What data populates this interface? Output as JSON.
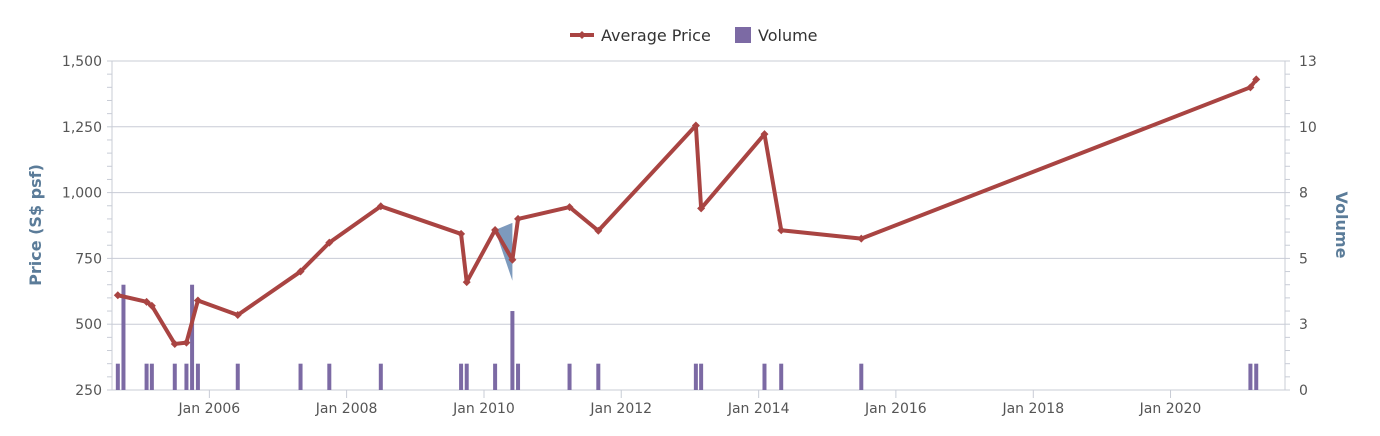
{
  "colors": {
    "price_line": "#a94442",
    "volume_bar": "#7c6aa4",
    "range_band": "#6f8fb6",
    "grid": "#c8ccd6",
    "axis_title": "#5b7c99"
  },
  "chart_data": {
    "type": "line",
    "legend": {
      "position": "top-center",
      "items": [
        {
          "name": "Average Price",
          "symbol": "line-diamond",
          "color": "#a94442"
        },
        {
          "name": "Volume",
          "symbol": "square",
          "color": "#7c6aa4"
        }
      ]
    },
    "y_left": {
      "title": "Price (S$ psf)",
      "min": 250,
      "max": 1500,
      "ticks": [
        250,
        500,
        750,
        1000,
        1250,
        1500
      ],
      "tick_labels": [
        "250",
        "500",
        "750",
        "1,000",
        "1,250",
        "1,500"
      ],
      "grid": true
    },
    "y_right": {
      "title": "Volume",
      "min": 0,
      "max": 12.5,
      "ticks": [
        0,
        2.5,
        5,
        7.5,
        10,
        12.5
      ],
      "tick_labels": [
        "0",
        "3",
        "5",
        "8",
        "10",
        "13"
      ]
    },
    "x_axis": {
      "type": "date",
      "min": "2004-08-01",
      "max": "2021-09-01",
      "ticks": [
        "2006-01-01",
        "2008-01-01",
        "2010-01-01",
        "2012-01-01",
        "2014-01-01",
        "2016-01-01",
        "2018-01-01",
        "2020-01-01"
      ],
      "tick_labels": [
        "Jan 2006",
        "Jan 2008",
        "Jan 2010",
        "Jan 2012",
        "Jan 2014",
        "Jan 2016",
        "Jan 2018",
        "Jan 2020"
      ]
    },
    "series": [
      {
        "name": "Average Price",
        "type": "line",
        "points": [
          {
            "date": "2004-09-01",
            "value": 610
          },
          {
            "date": "2005-02-01",
            "value": 585
          },
          {
            "date": "2005-03-01",
            "value": 570
          },
          {
            "date": "2005-07-01",
            "value": 425
          },
          {
            "date": "2005-09-01",
            "value": 430
          },
          {
            "date": "2005-11-01",
            "value": 590
          },
          {
            "date": "2006-06-01",
            "value": 535
          },
          {
            "date": "2007-05-01",
            "value": 700
          },
          {
            "date": "2007-10-01",
            "value": 810
          },
          {
            "date": "2008-07-01",
            "value": 948
          },
          {
            "date": "2009-09-01",
            "value": 843
          },
          {
            "date": "2009-10-01",
            "value": 660
          },
          {
            "date": "2010-03-01",
            "value": 858
          },
          {
            "date": "2010-06-01",
            "value": 745
          },
          {
            "date": "2010-07-01",
            "value": 900
          },
          {
            "date": "2011-04-01",
            "value": 945
          },
          {
            "date": "2011-09-01",
            "value": 855
          },
          {
            "date": "2013-02-01",
            "value": 1255
          },
          {
            "date": "2013-03-01",
            "value": 940
          },
          {
            "date": "2014-02-01",
            "value": 1222
          },
          {
            "date": "2014-05-01",
            "value": 857
          },
          {
            "date": "2015-07-01",
            "value": 825
          },
          {
            "date": "2021-03-01",
            "value": 1400
          },
          {
            "date": "2021-04-01",
            "value": 1430
          }
        ]
      },
      {
        "name": "Volume",
        "type": "bar",
        "points": [
          {
            "date": "2004-09-01",
            "value": 1
          },
          {
            "date": "2004-10-01",
            "value": 4
          },
          {
            "date": "2005-02-01",
            "value": 1
          },
          {
            "date": "2005-03-01",
            "value": 1
          },
          {
            "date": "2005-07-01",
            "value": 1
          },
          {
            "date": "2005-09-01",
            "value": 1
          },
          {
            "date": "2005-10-01",
            "value": 4
          },
          {
            "date": "2005-11-01",
            "value": 1
          },
          {
            "date": "2006-06-01",
            "value": 1
          },
          {
            "date": "2007-05-01",
            "value": 1
          },
          {
            "date": "2007-10-01",
            "value": 1
          },
          {
            "date": "2008-07-01",
            "value": 1
          },
          {
            "date": "2009-09-01",
            "value": 1
          },
          {
            "date": "2009-10-01",
            "value": 1
          },
          {
            "date": "2010-03-01",
            "value": 1
          },
          {
            "date": "2010-06-01",
            "value": 3
          },
          {
            "date": "2010-07-01",
            "value": 1
          },
          {
            "date": "2011-04-01",
            "value": 1
          },
          {
            "date": "2011-09-01",
            "value": 1
          },
          {
            "date": "2013-02-01",
            "value": 1
          },
          {
            "date": "2013-03-01",
            "value": 1
          },
          {
            "date": "2014-02-01",
            "value": 1
          },
          {
            "date": "2014-05-01",
            "value": 1
          },
          {
            "date": "2015-07-01",
            "value": 1
          },
          {
            "date": "2021-03-01",
            "value": 1
          },
          {
            "date": "2021-04-01",
            "value": 1
          }
        ]
      },
      {
        "name": "Price Range",
        "type": "arearange",
        "in_legend": false,
        "points": [
          {
            "date": "2010-03-01",
            "low": 858,
            "high": 858
          },
          {
            "date": "2010-06-01",
            "low": 665,
            "high": 885
          }
        ]
      }
    ]
  }
}
